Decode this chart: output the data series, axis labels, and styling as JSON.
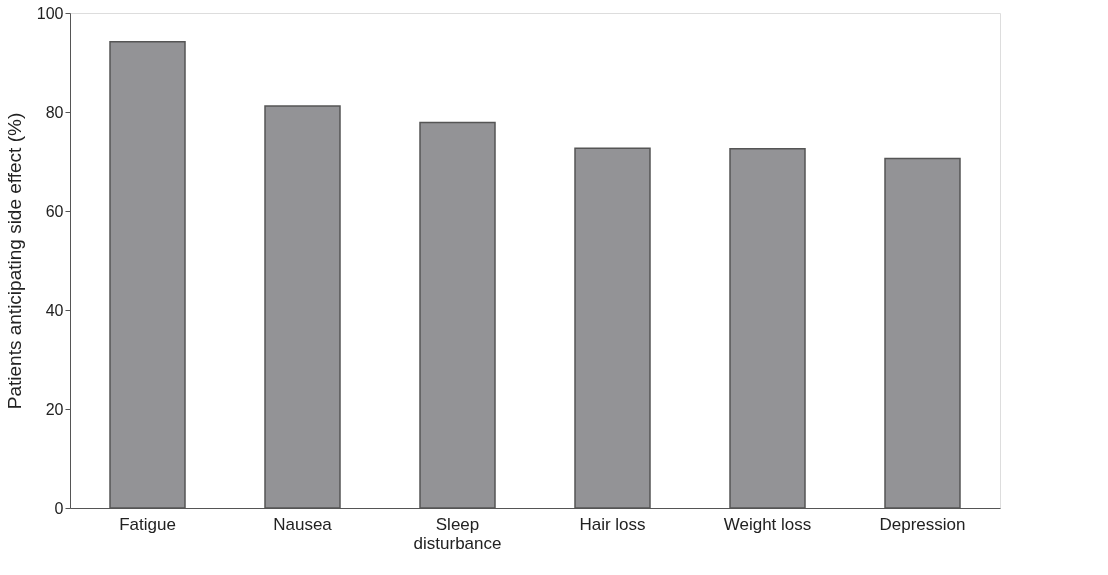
{
  "chart_data": {
    "type": "bar",
    "ylabel": "Patients anticipating side effect (%)",
    "categories": [
      "Fatigue",
      "Nausea",
      "Sleep\ndisturbance",
      "Hair loss",
      "Weight loss",
      "Depression"
    ],
    "values": [
      94.2,
      81.2,
      77.9,
      72.7,
      72.6,
      70.6
    ],
    "color": "#939396",
    "ylim": [
      0,
      100
    ],
    "yticks": [
      0,
      20,
      40,
      60,
      80,
      100
    ],
    "grid": false
  }
}
